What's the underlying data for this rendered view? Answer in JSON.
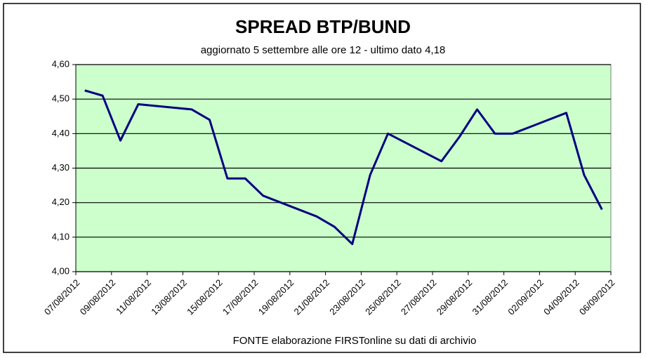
{
  "chart_data": {
    "type": "line",
    "title": "SPREAD  BTP/BUND",
    "subtitle": "aggiornato 5 settembre alle ore 12 - ultimo dato 4,18",
    "source": "FONTE elaborazione FIRSTonline su dati di archivio",
    "x": [
      "07/08/2012",
      "08/08/2012",
      "09/08/2012",
      "10/08/2012",
      "13/08/2012",
      "14/08/2012",
      "15/08/2012",
      "16/08/2012",
      "17/08/2012",
      "20/08/2012",
      "21/08/2012",
      "22/08/2012",
      "23/08/2012",
      "24/08/2012",
      "27/08/2012",
      "28/08/2012",
      "29/08/2012",
      "30/08/2012",
      "31/08/2012",
      "03/09/2012",
      "04/09/2012",
      "05/09/2012"
    ],
    "series": [
      {
        "name": "Spread",
        "color": "#000080",
        "values": [
          4.525,
          4.51,
          4.38,
          4.485,
          4.47,
          4.44,
          4.27,
          4.27,
          4.22,
          4.16,
          4.13,
          4.08,
          4.28,
          4.4,
          4.32,
          4.39,
          4.47,
          4.4,
          4.4,
          4.46,
          4.28,
          4.18
        ]
      }
    ],
    "xlim": [
      "07/08/2012",
      "06/09/2012"
    ],
    "xticks": [
      "07/08/2012",
      "09/08/2012",
      "11/08/2012",
      "13/08/2012",
      "15/08/2012",
      "17/08/2012",
      "19/08/2012",
      "21/08/2012",
      "23/08/2012",
      "25/08/2012",
      "27/08/2012",
      "29/08/2012",
      "31/08/2012",
      "02/09/2012",
      "04/09/2012",
      "06/09/2012"
    ],
    "ylim": [
      4.0,
      4.6
    ],
    "yticks": [
      {
        "value": 4.0,
        "label": "4,00"
      },
      {
        "value": 4.1,
        "label": "4,10"
      },
      {
        "value": 4.2,
        "label": "4,20"
      },
      {
        "value": 4.3,
        "label": "4,30"
      },
      {
        "value": 4.4,
        "label": "4,40"
      },
      {
        "value": 4.5,
        "label": "4,50"
      },
      {
        "value": 4.6,
        "label": "4,60"
      }
    ],
    "grid": true,
    "plot_background": "#ccffcc"
  }
}
